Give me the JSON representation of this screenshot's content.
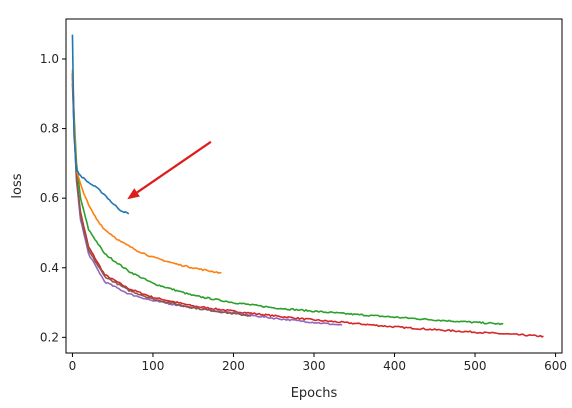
{
  "chart_data": {
    "type": "line",
    "title": "",
    "xlabel": "Epochs",
    "ylabel": "loss",
    "xlim": [
      -8,
      608
    ],
    "ylim": [
      0.155,
      1.115
    ],
    "xticks": [
      0,
      100,
      200,
      300,
      400,
      500,
      600
    ],
    "yticks": [
      0.2,
      0.4,
      0.6,
      0.8,
      1.0
    ],
    "xtick_labels": [
      "0",
      "100",
      "200",
      "300",
      "400",
      "500",
      "600"
    ],
    "ytick_labels": [
      "0.2",
      "0.4",
      "0.6",
      "0.8",
      "1.0"
    ],
    "grid": false,
    "legend": "none",
    "series": [
      {
        "color": "#d62728",
        "x": [
          0,
          2,
          5,
          10,
          20,
          40,
          70,
          100,
          150,
          200,
          250,
          300,
          350,
          400,
          450,
          500,
          550,
          585
        ],
        "y": [
          0.96,
          0.82,
          0.66,
          0.56,
          0.46,
          0.38,
          0.34,
          0.315,
          0.29,
          0.275,
          0.262,
          0.25,
          0.24,
          0.23,
          0.222,
          0.215,
          0.208,
          0.203
        ]
      },
      {
        "color": "#2ca02c",
        "x": [
          0,
          2,
          5,
          10,
          20,
          40,
          70,
          100,
          150,
          200,
          250,
          300,
          350,
          400,
          450,
          500,
          535
        ],
        "y": [
          0.96,
          0.84,
          0.7,
          0.6,
          0.51,
          0.44,
          0.39,
          0.355,
          0.32,
          0.3,
          0.285,
          0.275,
          0.266,
          0.258,
          0.25,
          0.243,
          0.238
        ]
      },
      {
        "color": "#9467bd",
        "x": [
          0,
          2,
          5,
          10,
          20,
          40,
          70,
          100,
          150,
          200,
          250,
          300,
          335
        ],
        "y": [
          0.95,
          0.8,
          0.65,
          0.54,
          0.44,
          0.36,
          0.325,
          0.305,
          0.285,
          0.27,
          0.255,
          0.243,
          0.235
        ]
      },
      {
        "color": "#8c564b",
        "x": [
          0,
          2,
          5,
          10,
          20,
          40,
          70,
          100,
          150,
          200,
          222
        ],
        "y": [
          0.93,
          0.8,
          0.66,
          0.55,
          0.45,
          0.375,
          0.335,
          0.31,
          0.285,
          0.268,
          0.262
        ]
      },
      {
        "color": "#ff7f0e",
        "x": [
          0,
          2,
          5,
          10,
          20,
          30,
          40,
          60,
          80,
          100,
          130,
          160,
          185
        ],
        "y": [
          0.97,
          0.82,
          0.68,
          0.64,
          0.58,
          0.54,
          0.51,
          0.475,
          0.45,
          0.43,
          0.41,
          0.395,
          0.385
        ]
      },
      {
        "color": "#1f77b4",
        "x": [
          0,
          2,
          5,
          10,
          20,
          30,
          40,
          50,
          60,
          70
        ],
        "y": [
          1.07,
          0.78,
          0.68,
          0.665,
          0.645,
          0.63,
          0.61,
          0.585,
          0.565,
          0.555
        ]
      }
    ],
    "annotation": {
      "type": "arrow",
      "color": "#dd1c1c",
      "tail": [
        172,
        0.762
      ],
      "head": [
        68,
        0.597
      ]
    }
  }
}
